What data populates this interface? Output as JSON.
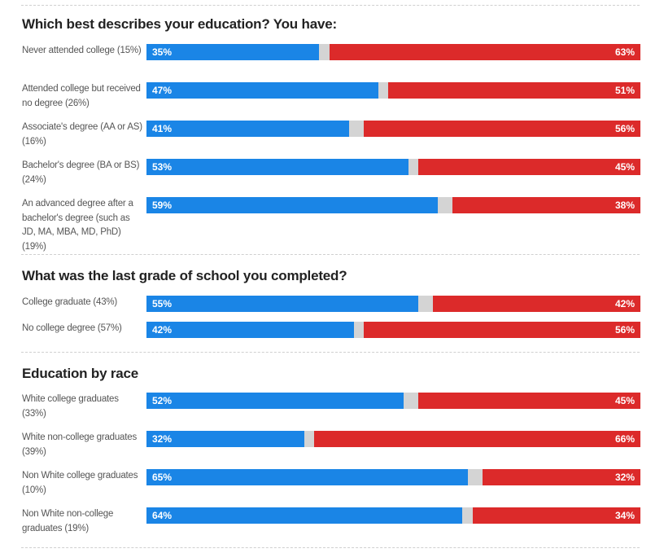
{
  "colors": {
    "rep": "#1a85e6",
    "dem": "#dc2a2a",
    "other": "#d4d4d4"
  },
  "chart_data": [
    {
      "type": "bar",
      "orientation": "horizontal-stacked",
      "title": "Which best describes your education? You have:",
      "categories": [
        "Never attended college (15%)",
        "Attended college but received no degree (26%)",
        "Associate's degree (AA or AS) (16%)",
        "Bachelor's degree (BA or BS) (24%)",
        "An advanced degree after a bachelor's degree (such as JD, MA, MBA, MD, PhD) (19%)"
      ],
      "series": [
        {
          "name": "blue",
          "values": [
            35,
            47,
            41,
            53,
            59
          ]
        },
        {
          "name": "red",
          "values": [
            63,
            51,
            56,
            45,
            38
          ]
        }
      ],
      "xlim": [
        0,
        100
      ]
    },
    {
      "type": "bar",
      "orientation": "horizontal-stacked",
      "title": "What was the last grade of school you completed?",
      "categories": [
        "College graduate (43%)",
        "No college degree (57%)"
      ],
      "series": [
        {
          "name": "blue",
          "values": [
            55,
            42
          ]
        },
        {
          "name": "red",
          "values": [
            42,
            56
          ]
        }
      ],
      "xlim": [
        0,
        100
      ]
    },
    {
      "type": "bar",
      "orientation": "horizontal-stacked",
      "title": "Education by race",
      "categories": [
        "White college graduates (33%)",
        "White non-college graduates (39%)",
        "Non White college graduates (10%)",
        "Non White non-college graduates (19%)"
      ],
      "series": [
        {
          "name": "blue",
          "values": [
            52,
            32,
            65,
            64
          ]
        },
        {
          "name": "red",
          "values": [
            45,
            66,
            32,
            34
          ]
        }
      ],
      "xlim": [
        0,
        100
      ]
    }
  ]
}
